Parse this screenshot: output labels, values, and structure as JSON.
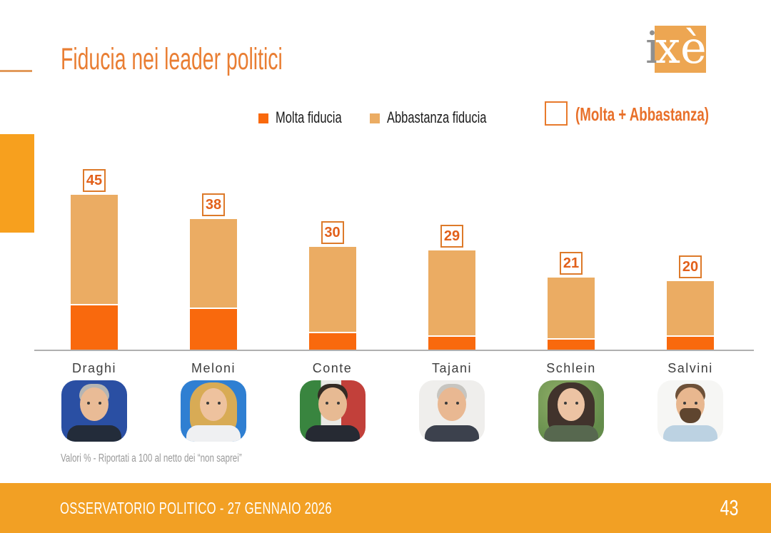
{
  "header": {
    "title": "Fiducia nei leader politici",
    "logo": {
      "gray_part": "i",
      "orange_part": "xè",
      "square_color": "#EDA652"
    }
  },
  "legend": {
    "items": [
      {
        "label": "Molta fiducia",
        "color": "#F9690D"
      },
      {
        "label": "Abbastanza fiducia",
        "color": "#EBAC63"
      }
    ],
    "combined": {
      "label": "(Molta + Abbastanza)",
      "color": "#E8702A"
    }
  },
  "chart_data": {
    "type": "bar",
    "stacked": true,
    "categories": [
      "Draghi",
      "Meloni",
      "Conte",
      "Tajani",
      "Schlein",
      "Salvini"
    ],
    "series": [
      {
        "name": "Molta fiducia",
        "color": "#F9690D",
        "values": [
          13,
          12,
          5,
          4,
          3,
          4
        ]
      },
      {
        "name": "Abbastanza fiducia",
        "color": "#EBAC63",
        "values": [
          32,
          26,
          25,
          25,
          18,
          16
        ]
      }
    ],
    "totals": {
      "label": "(Molta + Abbastanza)",
      "values": [
        45,
        38,
        30,
        29,
        21,
        20
      ]
    },
    "unit": "percent",
    "ylim": [
      0,
      50
    ],
    "grid": false,
    "legend_position": "top",
    "value_labels": "boxed above bars"
  },
  "photos": [
    {
      "name": "Draghi",
      "description": "gray-haired man, EU-blue background, dark suit",
      "bg": "#2A4FA3",
      "hair_style": "short",
      "hair": "#B5B5B3",
      "skin": "#E9BB96",
      "top": "#232C3A"
    },
    {
      "name": "Meloni",
      "description": "blonde woman, blue background, white top",
      "bg": "#2F7FD2",
      "hair_style": "long",
      "hair": "#D8AB55",
      "skin": "#EEC29E",
      "top": "#EFF0F2"
    },
    {
      "name": "Conte",
      "description": "dark-haired man, Italian flag background, dark suit",
      "bg": "linear-gradient(90deg,#39853F 0%,#39853F 32%,#E9E9E5 32%,#E9E9E5 63%,#C2403A 63%,#C2403A 100%)",
      "hair_style": "short",
      "hair": "#342B24",
      "skin": "#E7BA93",
      "top": "#262A33"
    },
    {
      "name": "Tajani",
      "description": "gray-haired man, light background, dark suit",
      "bg": "#EFEEEC",
      "hair_style": "short",
      "hair": "#C7C5C0",
      "skin": "#E9B892",
      "top": "#3C414D"
    },
    {
      "name": "Schlein",
      "description": "dark-haired woman, green blurred background",
      "bg": "radial-gradient(circle at 35% 30%,#8FAE67 0%,#648C4B 75%)",
      "hair_style": "long",
      "hair": "#41332C",
      "skin": "#ECC3A3",
      "top": "#57684F"
    },
    {
      "name": "Salvini",
      "description": "bearded man, white background, light blue shirt",
      "bg": "#F6F6F4",
      "hair_style": "short",
      "hair": "#6E5138",
      "skin": "#E8B78F",
      "top": "#BCD2E2",
      "beard": "#5F452F"
    }
  ],
  "footnote": "Valori % - Riportati a 100 al netto dei “non saprei”",
  "footer": {
    "label": "OSSERVATORIO POLITICO - 27 GENNAIO 2026",
    "page_number": "43"
  },
  "colors": {
    "accent_orange": "#F7A01E",
    "footer_orange": "#F2A024",
    "title_orange": "#E97E33",
    "badge_border": "#DD7A2A",
    "badge_text": "#E2601A",
    "axis_gray": "#B0B0B0",
    "note_gray": "#999999"
  }
}
